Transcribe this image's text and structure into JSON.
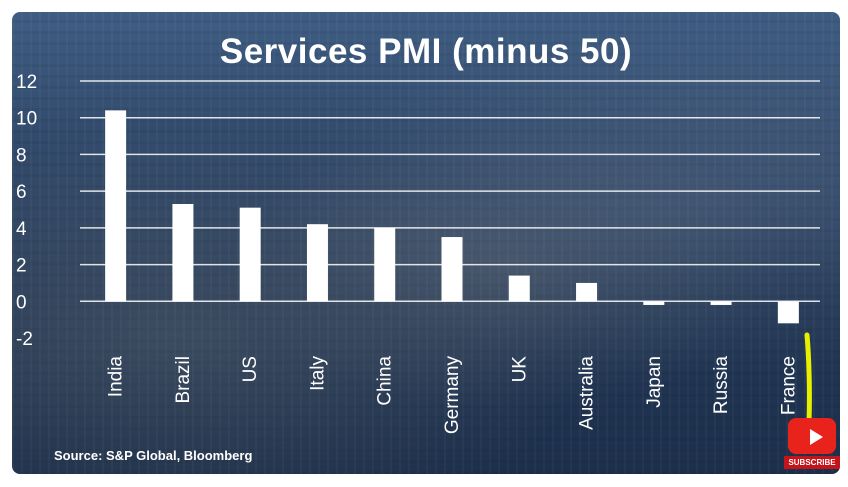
{
  "chart_data": {
    "type": "bar",
    "title": "Services PMI (minus 50)",
    "xlabel": "",
    "ylabel": "",
    "categories": [
      "India",
      "Brazil",
      "US",
      "Italy",
      "China",
      "Germany",
      "UK",
      "Australia",
      "Japan",
      "Russia",
      "France"
    ],
    "values": [
      10.4,
      5.3,
      5.1,
      4.2,
      4.0,
      3.5,
      1.4,
      1.0,
      -0.2,
      -0.2,
      -1.2
    ],
    "ylim": [
      -2,
      12
    ],
    "yticks": [
      "12",
      "10",
      "8",
      "6",
      "4",
      "2",
      "0",
      "-2"
    ],
    "grid": true,
    "source": "Source: S&P Global, Bloomberg",
    "bar_color": "#ffffff",
    "gridline_color": "#ffffff"
  },
  "overlay": {
    "subscribe_label": "SUBSCRIBE",
    "subscribe_icon": "youtube-play-icon",
    "subscribe_color": "#e8231c",
    "highlight_color": "#e8f000"
  }
}
